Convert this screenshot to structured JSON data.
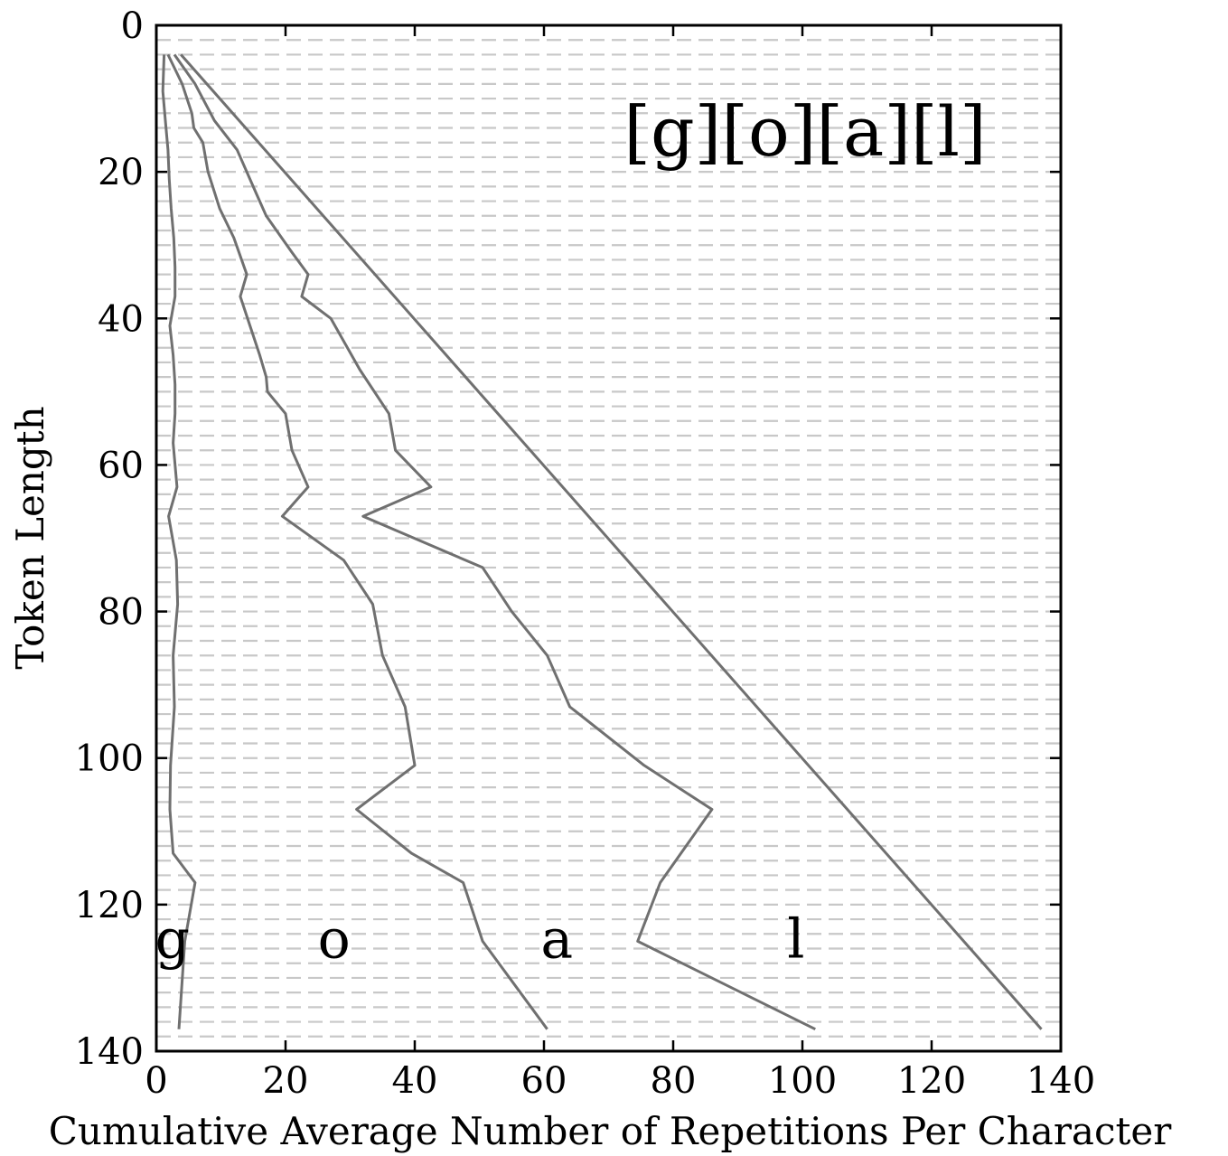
{
  "chart_data": {
    "type": "line",
    "title": "[g][o][a][l]",
    "xlabel": "Cumulative Average Number of Repetitions Per Character",
    "ylabel": "Token Length",
    "xlim": [
      0,
      140
    ],
    "ylim": [
      0,
      140
    ],
    "y_inverted": true,
    "xticks": [
      0,
      20,
      40,
      60,
      80,
      100,
      120,
      140
    ],
    "yticks": [
      0,
      20,
      40,
      60,
      80,
      100,
      120,
      140
    ],
    "grid": "horizontal dashed",
    "char_labels": [
      {
        "text": "g",
        "x": 2.5,
        "y": 125
      },
      {
        "text": "o",
        "x": 27.5,
        "y": 125
      },
      {
        "text": "a",
        "x": 62,
        "y": 125
      },
      {
        "text": "l",
        "x": 99,
        "y": 125
      }
    ],
    "series": [
      {
        "x": [
          1.2,
          1.0,
          1.4,
          1.8,
          2.0,
          2.3,
          2.7,
          2.9,
          2.9,
          2.1,
          2.6,
          2.9,
          2.9,
          2.6,
          3.2,
          1.9,
          3.1,
          3.3,
          2.6,
          2.8,
          2.2,
          2.1,
          2.6,
          6.0,
          4.4,
          3.5
        ],
        "y": [
          4,
          9,
          13,
          17,
          21,
          25,
          29,
          33,
          37,
          41,
          45,
          49,
          53,
          57,
          63,
          67,
          73,
          79,
          86,
          93,
          101,
          107,
          113,
          117,
          125,
          137
        ]
      },
      {
        "x": [
          1.8,
          4.0,
          5.5,
          5.8,
          7.2,
          8.0,
          9.8,
          12.0,
          14.0,
          13.0,
          16.0,
          17.0,
          17.2,
          20.0,
          21.0,
          23.5,
          19.5,
          29.0,
          33.5,
          35.0,
          38.5,
          40.0,
          31.0,
          39.5,
          47.5,
          50.5,
          60.5
        ],
        "y": [
          4,
          8,
          12,
          14,
          16,
          20,
          25,
          29,
          34,
          37,
          45,
          48,
          50,
          53,
          58,
          63,
          67,
          73,
          79,
          86,
          93,
          101,
          107,
          113,
          117,
          125,
          137
        ]
      },
      {
        "x": [
          2.8,
          6.0,
          9.0,
          12.5,
          15.5,
          17.0,
          21.0,
          23.5,
          22.5,
          27.0,
          31.5,
          36.0,
          37.0,
          42.5,
          32.0,
          50.5,
          55.0,
          60.5,
          64.0,
          75.5,
          86.0,
          78.0,
          74.5,
          102.0
        ],
        "y": [
          4,
          8,
          13,
          17,
          23,
          26,
          31,
          34,
          37,
          40,
          47,
          53,
          58,
          63,
          67,
          74,
          80,
          86,
          93,
          101,
          107,
          117,
          125,
          137
        ]
      },
      {
        "x": [
          3.8,
          137.0
        ],
        "y": [
          4,
          137
        ]
      }
    ]
  }
}
